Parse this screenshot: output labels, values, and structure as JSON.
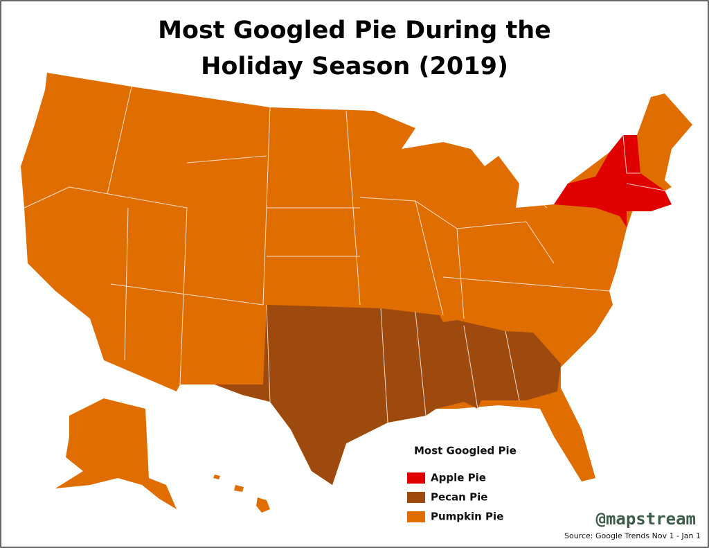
{
  "title_lines": [
    "Most Googled Pie During the",
    "Holiday Season (2019)"
  ],
  "legend": {
    "title": "Most Googled Pie",
    "items": [
      {
        "label": "Apple Pie",
        "color": "#e00000"
      },
      {
        "label": "Pecan Pie",
        "color": "#9e4a0e"
      },
      {
        "label": "Pumpkin Pie",
        "color": "#e06d00"
      }
    ]
  },
  "credit": "@mapstream",
  "source": "Source: Google Trends Nov 1 - Jan 1"
}
